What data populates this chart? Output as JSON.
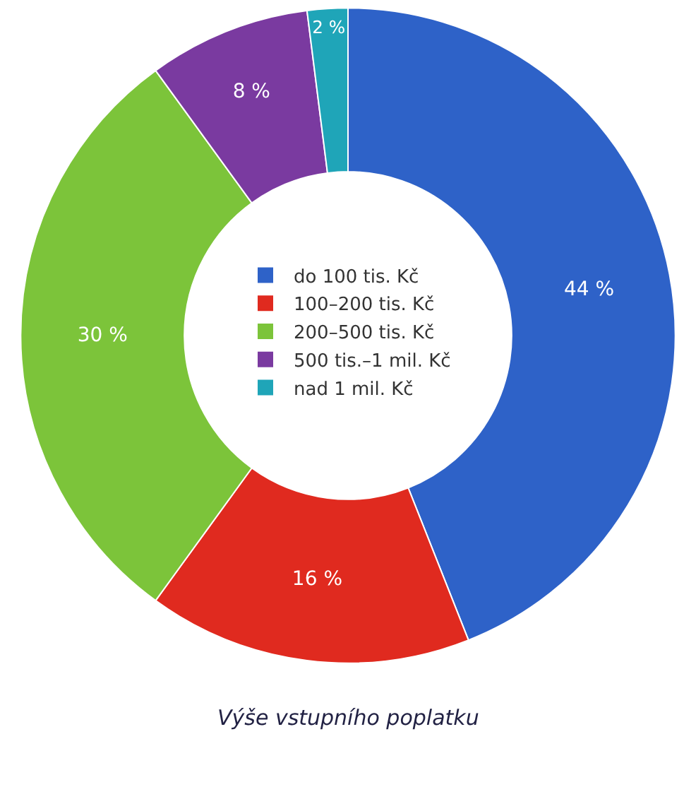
{
  "chart_data": {
    "type": "donut",
    "categories": [
      "do 100 tis. Kč",
      "100–200 tis. Kč",
      "200–500 tis. Kč",
      "500 tis.–1 mil. Kč",
      "nad 1 mil. Kč"
    ],
    "values": [
      44,
      16,
      30,
      8,
      2
    ],
    "colors": [
      "#2e62c8",
      "#e02a1f",
      "#7cc43a",
      "#7a3aa0",
      "#1fa5b8"
    ],
    "value_labels": [
      "44 %",
      "16 %",
      "30 %",
      "8 %",
      "2 %"
    ],
    "legend": "center",
    "annotations": [
      "Výše vstupního poplatku"
    ]
  }
}
